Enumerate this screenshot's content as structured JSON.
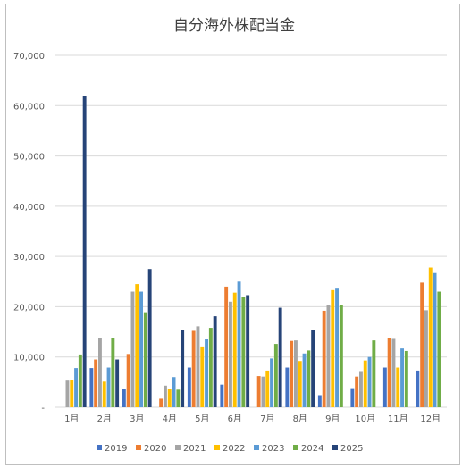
{
  "chart_data": {
    "type": "bar",
    "title": "自分海外株配当金",
    "categories": [
      "1月",
      "2月",
      "3月",
      "4月",
      "5月",
      "6月",
      "7月",
      "8月",
      "9月",
      "10月",
      "11月",
      "12月"
    ],
    "ylim": [
      0,
      70000
    ],
    "yticks": [
      "-",
      "10,000",
      "20,000",
      "30,000",
      "40,000",
      "50,000",
      "60,000",
      "70,000"
    ],
    "grid": true,
    "legend_position": "bottom",
    "series": [
      {
        "name": "2019",
        "color": "#4472C4",
        "values": [
          0,
          7800,
          3700,
          0,
          7900,
          4500,
          0,
          7900,
          2400,
          3800,
          7900,
          7300
        ]
      },
      {
        "name": "2020",
        "color": "#ED7D31",
        "values": [
          0,
          9500,
          10600,
          1700,
          15200,
          24000,
          6200,
          13200,
          19200,
          6100,
          13700,
          24800
        ]
      },
      {
        "name": "2021",
        "color": "#A5A5A5",
        "values": [
          5300,
          13700,
          23000,
          4300,
          16100,
          21000,
          6100,
          13300,
          20400,
          7200,
          13600,
          19300
        ]
      },
      {
        "name": "2022",
        "color": "#FFC000",
        "values": [
          5500,
          5100,
          24500,
          3600,
          12100,
          22800,
          7300,
          9200,
          23300,
          9300,
          7900,
          27800
        ]
      },
      {
        "name": "2023",
        "color": "#5B9BD5",
        "values": [
          7800,
          7900,
          23000,
          6000,
          13500,
          25000,
          9700,
          10700,
          23600,
          10000,
          11700,
          26700
        ]
      },
      {
        "name": "2024",
        "color": "#70AD47",
        "values": [
          10500,
          13700,
          18900,
          3500,
          15800,
          22000,
          12600,
          11300,
          20400,
          13300,
          11200,
          23000
        ]
      },
      {
        "name": "2025",
        "color": "#264478",
        "values": [
          61900,
          9500,
          27500,
          15400,
          18100,
          22300,
          19800,
          15400,
          0,
          0,
          0,
          0
        ]
      }
    ]
  }
}
